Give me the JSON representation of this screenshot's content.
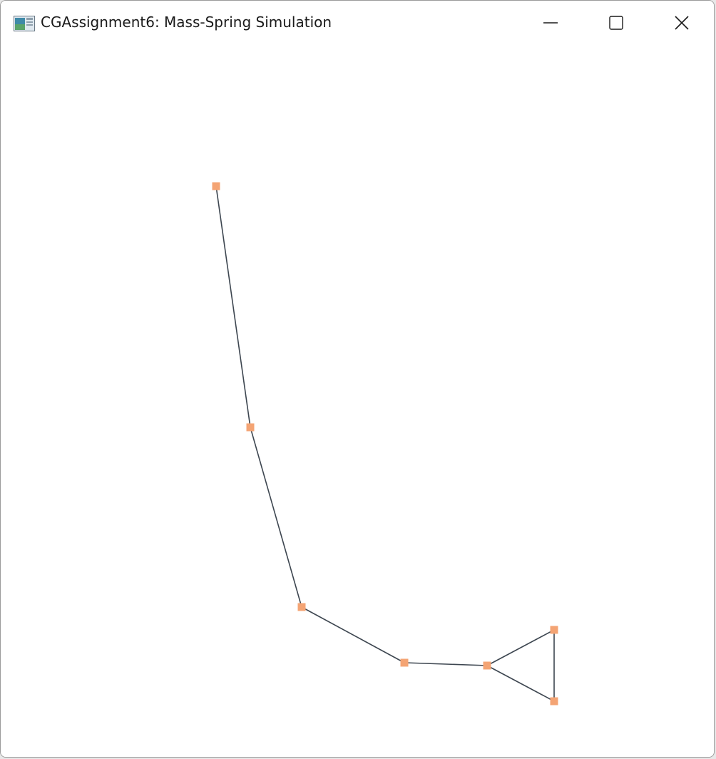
{
  "window": {
    "title": "CGAssignment6: Mass-Spring Simulation",
    "app_icon": "application-window-icon",
    "controls": {
      "minimize_icon": "minimize-icon",
      "maximize_icon": "maximize-icon",
      "close_icon": "close-icon"
    }
  },
  "scene": {
    "background_color": "#ffffff",
    "spring_color": "#3d4650",
    "mass_color": "#f4a474"
  }
}
